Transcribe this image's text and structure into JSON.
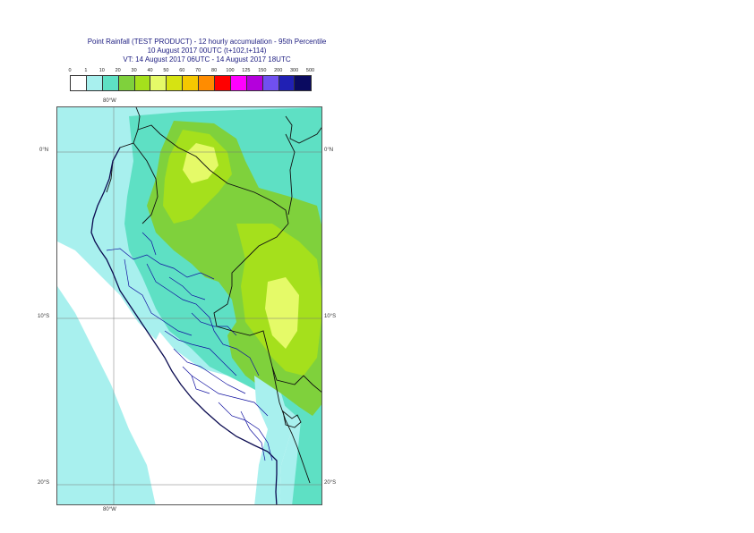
{
  "title": {
    "line1": "Point Rainfall (TEST PRODUCT) - 12 hourly accumulation - 95th Percentile",
    "line2": "10 August 2017 00UTC (t+102,t+114)",
    "line3": "VT: 14 August 2017 06UTC - 14 August 2017 18UTC"
  },
  "legend": {
    "ticks": [
      "0",
      "1",
      "10",
      "20",
      "30",
      "40",
      "50",
      "60",
      "70",
      "80",
      "100",
      "125",
      "150",
      "200",
      "300",
      "500"
    ],
    "colors": [
      "#ffffff",
      "#a8f0ee",
      "#5ee0c4",
      "#7fd13c",
      "#a5e01c",
      "#e5fa68",
      "#d6e312",
      "#f5c800",
      "#ff8c00",
      "#ff0000",
      "#ff00ff",
      "#b400dc",
      "#7050f0",
      "#2020b4",
      "#0a0a60"
    ]
  },
  "map": {
    "labels": {
      "lon_top": "80°W",
      "lon_bottom": "80°W",
      "lat_0_left": "0°N",
      "lat_0_right": "0°N",
      "lat_10_left": "10°S",
      "lat_10_right": "10°S",
      "lat_20_left": "20°S",
      "lat_20_right": "20°S"
    },
    "colors": {
      "light": "#a8f0ee",
      "teal": "#5ee0c4",
      "green": "#7fd13c",
      "lime": "#a5e01c",
      "yellow": "#e5fa68",
      "border": "#111111",
      "admin": "#1010a0",
      "coast": "#0a0a50",
      "grid": "#777777"
    }
  }
}
